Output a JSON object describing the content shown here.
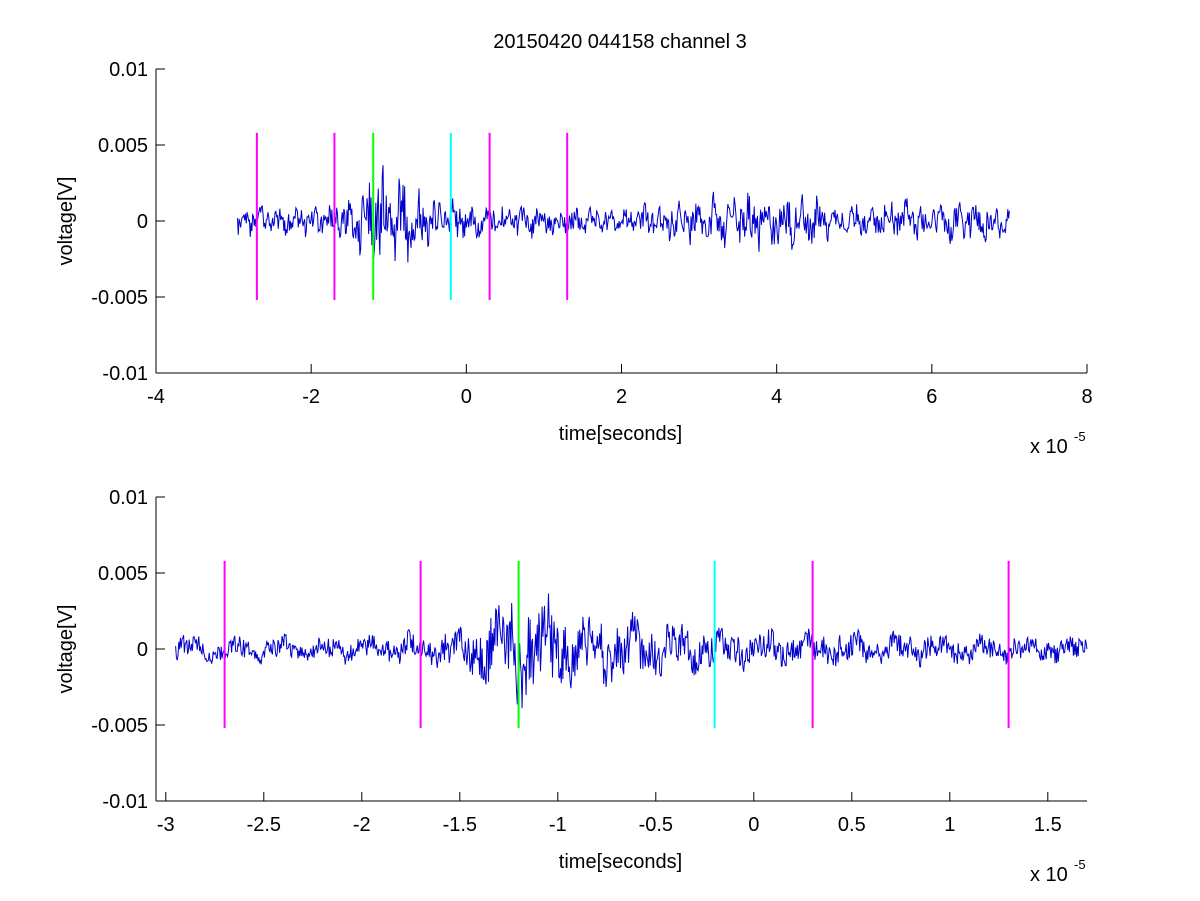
{
  "figure": {
    "title": "20150420 044158 channel 3"
  },
  "chart_data": [
    {
      "type": "line",
      "title": "20150420 044158 channel 3",
      "xlabel": "time[seconds]",
      "ylabel": "voltage[V]",
      "x_multiplier": "x 10",
      "x_multiplier_exp": "-5",
      "xlim": [
        -4,
        8
      ],
      "ylim": [
        -0.01,
        0.01
      ],
      "xticks": [
        -4,
        -2,
        0,
        2,
        4,
        6,
        8
      ],
      "xtick_labels": [
        "-4",
        "-2",
        "0",
        "2",
        "4",
        "6",
        "8"
      ],
      "yticks": [
        0.01,
        0.005,
        0,
        -0.005,
        -0.01
      ],
      "ytick_labels": [
        "0.01",
        "0.005",
        "0",
        "-0.005",
        "-0.01"
      ],
      "grid": false,
      "series": [
        {
          "color": "#0000cc",
          "x_range": [
            -2.95,
            7.0
          ],
          "description": "noisy voltage signal",
          "envelope": [
            {
              "x": -2.95,
              "amp": 0.0012
            },
            {
              "x": -2.0,
              "amp": 0.001
            },
            {
              "x": -1.5,
              "amp": 0.0016
            },
            {
              "x": -1.2,
              "amp": 0.004
            },
            {
              "x": -1.0,
              "amp": 0.0036
            },
            {
              "x": -0.5,
              "amp": 0.0018
            },
            {
              "x": 0.5,
              "amp": 0.0012
            },
            {
              "x": 2.0,
              "amp": 0.001
            },
            {
              "x": 3.0,
              "amp": 0.0018
            },
            {
              "x": 4.0,
              "amp": 0.002
            },
            {
              "x": 5.0,
              "amp": 0.0014
            },
            {
              "x": 6.0,
              "amp": 0.0016
            },
            {
              "x": 7.0,
              "amp": 0.0012
            }
          ]
        }
      ],
      "markers": [
        {
          "x": -2.7,
          "color": "#ff00ff",
          "y_range": [
            -0.0052,
            0.0058
          ]
        },
        {
          "x": -1.7,
          "color": "#ff00ff",
          "y_range": [
            -0.0052,
            0.0058
          ]
        },
        {
          "x": -1.2,
          "color": "#00ff00",
          "y_range": [
            -0.0052,
            0.0058
          ]
        },
        {
          "x": -0.2,
          "color": "#00ffff",
          "y_range": [
            -0.0052,
            0.0058
          ]
        },
        {
          "x": 0.3,
          "color": "#ff00ff",
          "y_range": [
            -0.0052,
            0.0058
          ]
        },
        {
          "x": 1.3,
          "color": "#ff00ff",
          "y_range": [
            -0.0052,
            0.0058
          ]
        }
      ]
    },
    {
      "type": "line",
      "title": "",
      "xlabel": "time[seconds]",
      "ylabel": "voltage[V]",
      "x_multiplier": "x 10",
      "x_multiplier_exp": "-5",
      "xlim": [
        -3.05,
        1.7
      ],
      "ylim": [
        -0.01,
        0.01
      ],
      "xticks": [
        -3,
        -2.5,
        -2,
        -1.5,
        -1,
        -0.5,
        0,
        0.5,
        1,
        1.5
      ],
      "xtick_labels": [
        "-3",
        "-2.5",
        "-2",
        "-1.5",
        "-1",
        "-0.5",
        "0",
        "0.5",
        "1",
        "1.5"
      ],
      "yticks": [
        0.01,
        0.005,
        0,
        -0.005,
        -0.01
      ],
      "ytick_labels": [
        "0.01",
        "0.005",
        "0",
        "-0.005",
        "-0.01"
      ],
      "grid": false,
      "series": [
        {
          "color": "#0000cc",
          "x_range": [
            -2.95,
            1.7
          ],
          "description": "zoomed noisy voltage signal",
          "envelope": [
            {
              "x": -2.95,
              "amp": 0.0012
            },
            {
              "x": -2.5,
              "amp": 0.001
            },
            {
              "x": -2.0,
              "amp": 0.001
            },
            {
              "x": -1.5,
              "amp": 0.0016
            },
            {
              "x": -1.2,
              "amp": 0.0042
            },
            {
              "x": -1.0,
              "amp": 0.0036
            },
            {
              "x": -0.5,
              "amp": 0.002
            },
            {
              "x": 0.0,
              "amp": 0.0014
            },
            {
              "x": 0.5,
              "amp": 0.0014
            },
            {
              "x": 1.0,
              "amp": 0.0012
            },
            {
              "x": 1.7,
              "amp": 0.001
            }
          ]
        }
      ],
      "markers": [
        {
          "x": -2.7,
          "color": "#ff00ff",
          "y_range": [
            -0.0052,
            0.0058
          ]
        },
        {
          "x": -1.7,
          "color": "#ff00ff",
          "y_range": [
            -0.0052,
            0.0058
          ]
        },
        {
          "x": -1.2,
          "color": "#00ff00",
          "y_range": [
            -0.0052,
            0.0058
          ]
        },
        {
          "x": -0.2,
          "color": "#00ffff",
          "y_range": [
            -0.0052,
            0.0058
          ]
        },
        {
          "x": 0.3,
          "color": "#ff00ff",
          "y_range": [
            -0.0052,
            0.0058
          ]
        },
        {
          "x": 1.3,
          "color": "#ff00ff",
          "y_range": [
            -0.0052,
            0.0058
          ]
        }
      ]
    }
  ]
}
